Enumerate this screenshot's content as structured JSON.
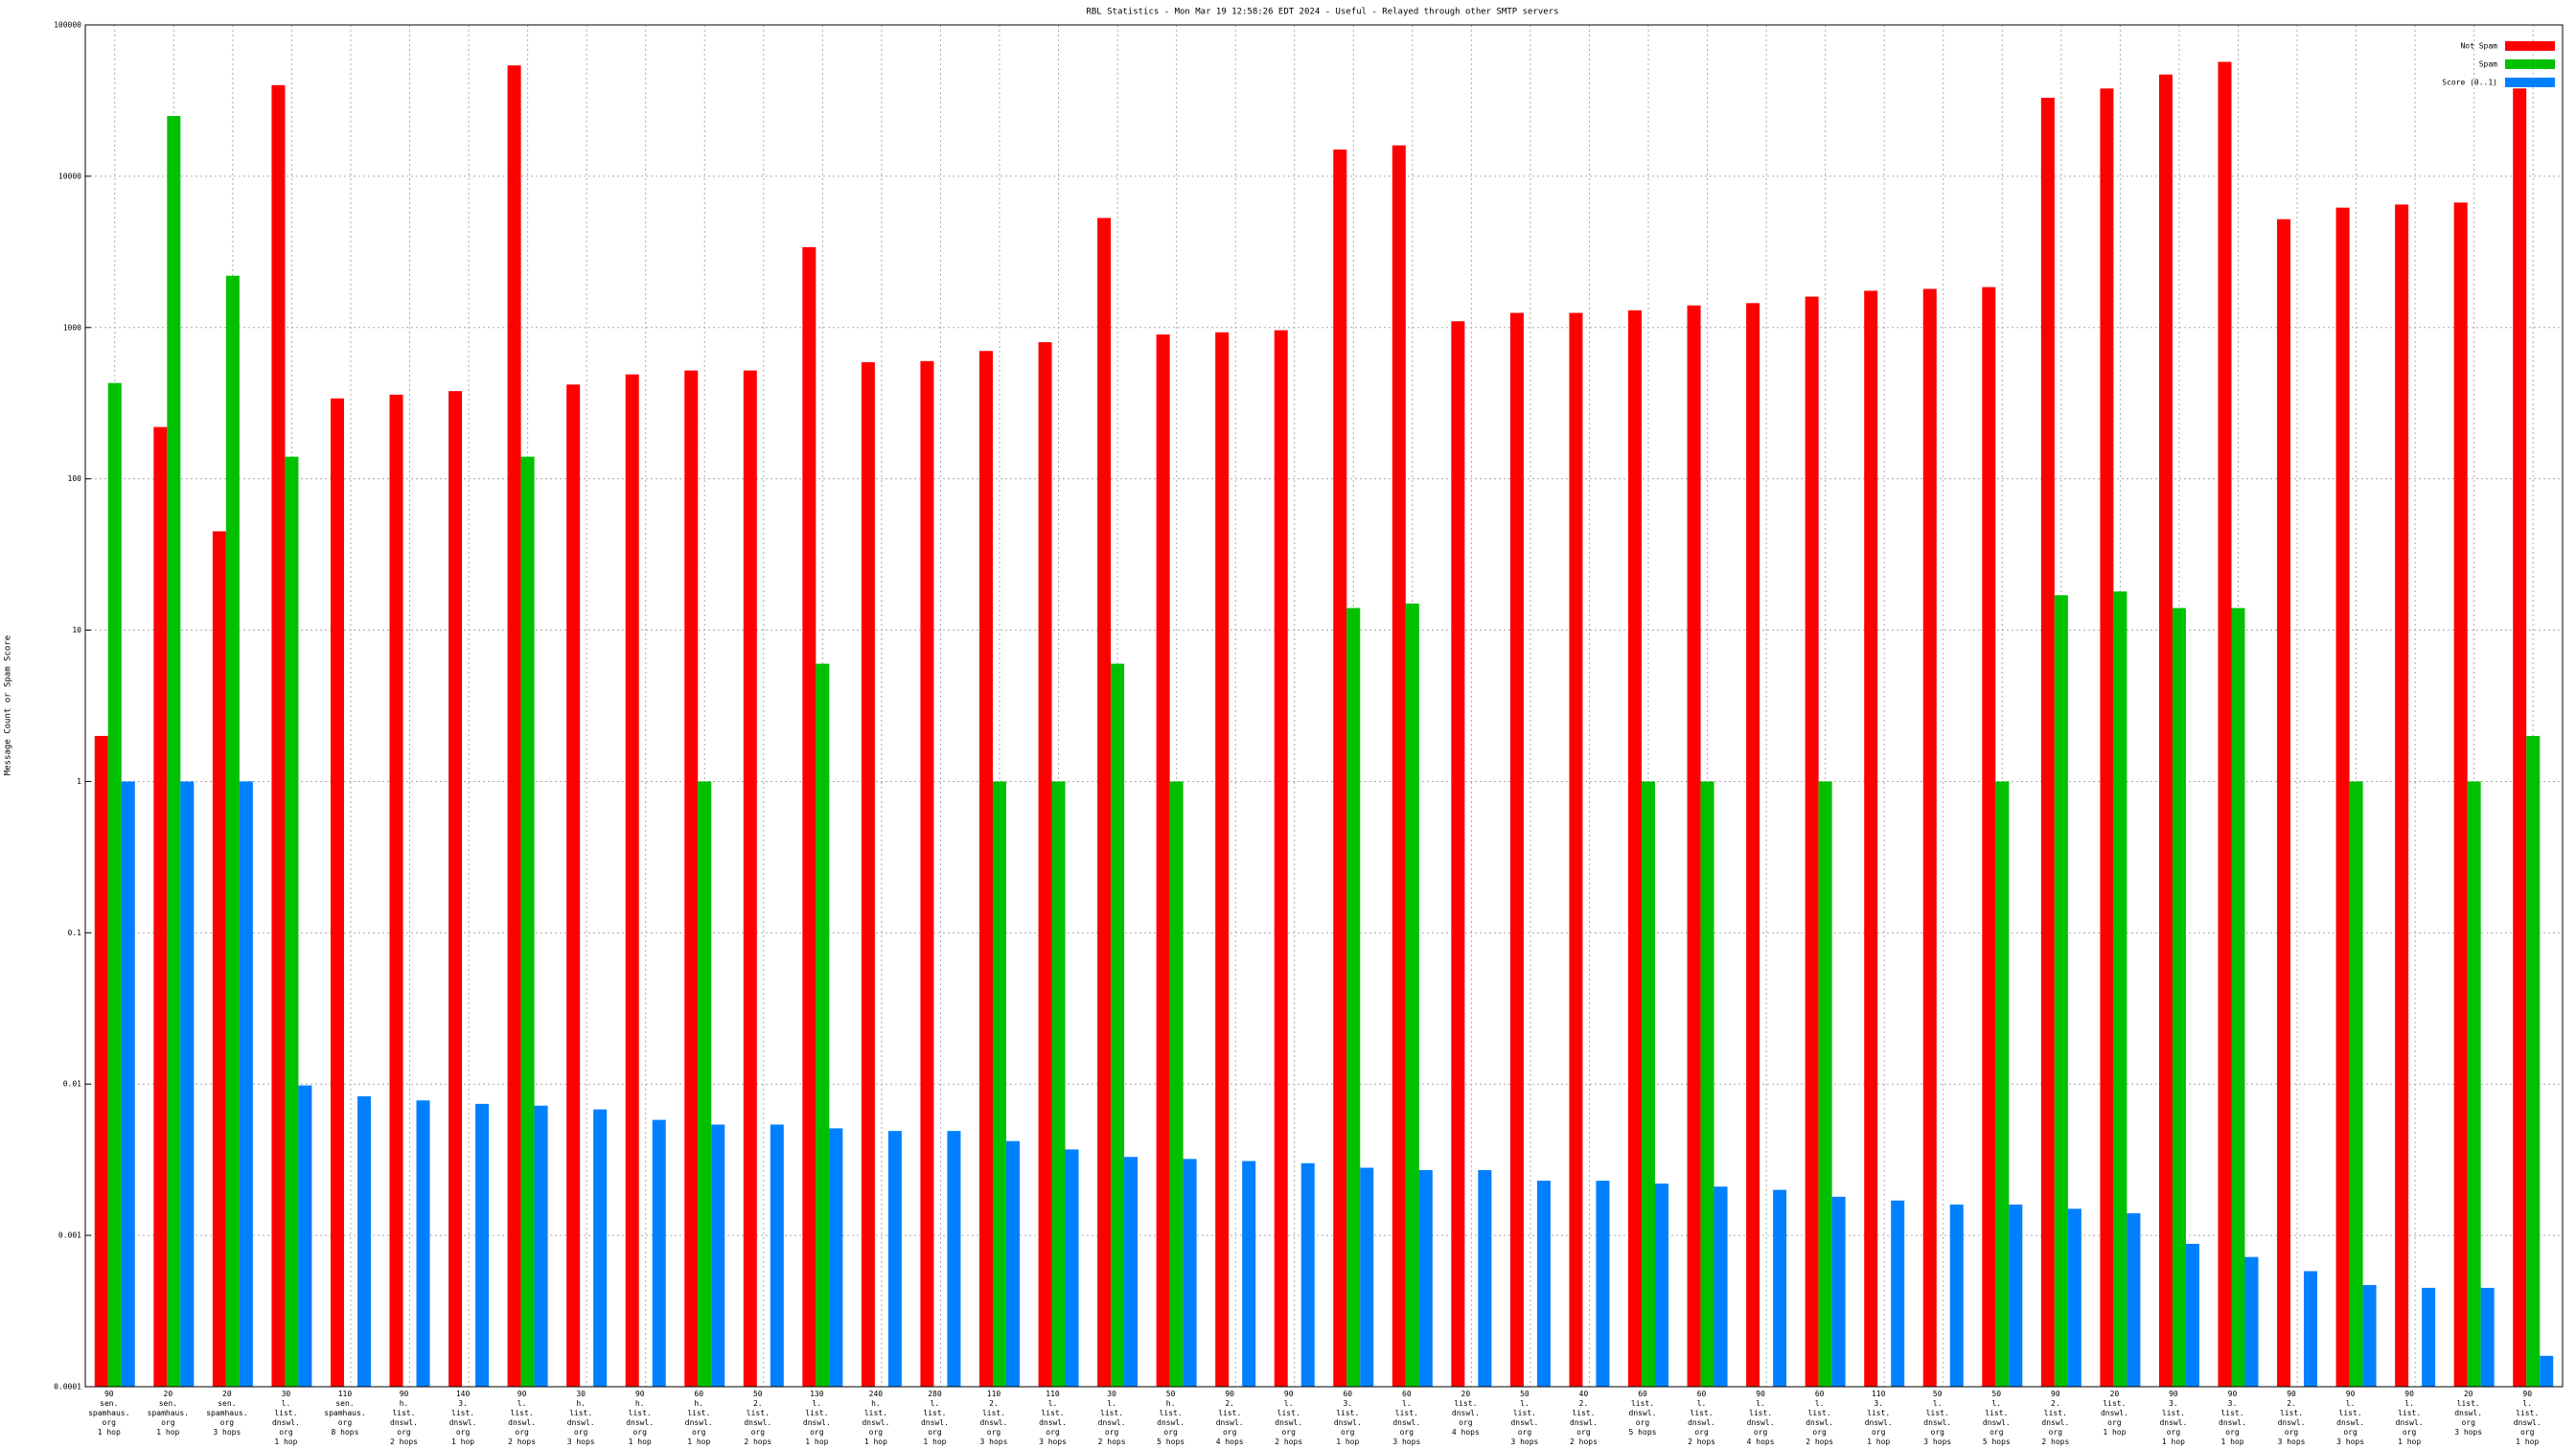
{
  "chart_data": {
    "type": "bar",
    "title": "RBL Statistics - Mon Mar 19 12:58:26 EDT 2024 - Useful - Relayed through other SMTP servers",
    "y_label": "Message Count or Spam Score",
    "log_scale": true,
    "grid": true,
    "legend": "upper right",
    "ylim": [
      0.0001,
      100000
    ],
    "yticks": [
      0.0001,
      0.001,
      0.01,
      0.1,
      1,
      10,
      100,
      1000,
      10000,
      100000
    ],
    "categories": [
      [
        "90",
        "sen.",
        "spamhaus.",
        "org",
        "1 hop"
      ],
      [
        "20",
        "sen.",
        "spamhaus.",
        "org",
        "1 hop"
      ],
      [
        "20",
        "sen.",
        "spamhaus.",
        "org",
        "3 hops"
      ],
      [
        "30",
        "l.",
        "list.",
        "dnswl.",
        "org",
        "1 hop"
      ],
      [
        "110",
        "sen.",
        "spamhaus.",
        "org",
        "8 hops"
      ],
      [
        "90",
        "h.",
        "list.",
        "dnswl.",
        "org",
        "2 hops"
      ],
      [
        "140",
        "3.",
        "list.",
        "dnswl.",
        "org",
        "1 hop"
      ],
      [
        "90",
        "l.",
        "list.",
        "dnswl.",
        "org",
        "2 hops"
      ],
      [
        "30",
        "h.",
        "list.",
        "dnswl.",
        "org",
        "3 hops"
      ],
      [
        "90",
        "h.",
        "list.",
        "dnswl.",
        "org",
        "1 hop"
      ],
      [
        "60",
        "h.",
        "list.",
        "dnswl.",
        "org",
        "1 hop"
      ],
      [
        "50",
        "2.",
        "list.",
        "dnswl.",
        "org",
        "2 hops"
      ],
      [
        "130",
        "l.",
        "list.",
        "dnswl.",
        "org",
        "1 hop"
      ],
      [
        "240",
        "h.",
        "list.",
        "dnswl.",
        "org",
        "1 hop"
      ],
      [
        "280",
        "l.",
        "list.",
        "dnswl.",
        "org",
        "1 hop"
      ],
      [
        "110",
        "2.",
        "list.",
        "dnswl.",
        "org",
        "3 hops"
      ],
      [
        "110",
        "l.",
        "list.",
        "dnswl.",
        "org",
        "3 hops"
      ],
      [
        "30",
        "l.",
        "list.",
        "dnswl.",
        "org",
        "2 hops"
      ],
      [
        "50",
        "h.",
        "list.",
        "dnswl.",
        "org",
        "5 hops"
      ],
      [
        "90",
        "2.",
        "list.",
        "dnswl.",
        "org",
        "4 hops"
      ],
      [
        "90",
        "l.",
        "list.",
        "dnswl.",
        "org",
        "2 hops"
      ],
      [
        "60",
        "3.",
        "list.",
        "dnswl.",
        "org",
        "1 hop"
      ],
      [
        "60",
        "l.",
        "list.",
        "dnswl.",
        "org",
        "3 hops"
      ],
      [
        "20",
        "list.",
        "dnswl.",
        "org",
        "4 hops"
      ],
      [
        "50",
        "l.",
        "list.",
        "dnswl.",
        "org",
        "3 hops"
      ],
      [
        "40",
        "2.",
        "list.",
        "dnswl.",
        "org",
        "2 hops"
      ],
      [
        "60",
        "list.",
        "dnswl.",
        "org",
        "5 hops"
      ],
      [
        "60",
        "l.",
        "list.",
        "dnswl.",
        "org",
        "2 hops"
      ],
      [
        "90",
        "l.",
        "list.",
        "dnswl.",
        "org",
        "4 hops"
      ],
      [
        "60",
        "l.",
        "list.",
        "dnswl.",
        "org",
        "2 hops"
      ],
      [
        "110",
        "3.",
        "list.",
        "dnswl.",
        "org",
        "1 hop"
      ],
      [
        "50",
        "l.",
        "list.",
        "dnswl.",
        "org",
        "3 hops"
      ],
      [
        "50",
        "l.",
        "list.",
        "dnswl.",
        "org",
        "5 hops"
      ],
      [
        "90",
        "2.",
        "list.",
        "dnswl.",
        "org",
        "2 hops"
      ],
      [
        "20",
        "list.",
        "dnswl.",
        "org",
        "1 hop"
      ],
      [
        "90",
        "3.",
        "list.",
        "dnswl.",
        "org",
        "1 hop"
      ],
      [
        "90",
        "3.",
        "list.",
        "dnswl.",
        "org",
        "1 hop"
      ],
      [
        "90",
        "2.",
        "list.",
        "dnswl.",
        "org",
        "3 hops"
      ],
      [
        "90",
        "l.",
        "list.",
        "dnswl.",
        "org",
        "3 hops"
      ],
      [
        "90",
        "l.",
        "list.",
        "dnswl.",
        "org",
        "1 hop"
      ],
      [
        "20",
        "list.",
        "dnswl.",
        "org",
        "3 hops"
      ],
      [
        "90",
        "l.",
        "list.",
        "dnswl.",
        "org",
        "1 hop"
      ]
    ],
    "series": [
      {
        "name": "Not Spam",
        "color": "#ff0000",
        "values": [
          2,
          220,
          45,
          40000,
          340,
          360,
          380,
          54000,
          420,
          490,
          520,
          520,
          3400,
          590,
          600,
          700,
          800,
          5300,
          900,
          930,
          960,
          15000,
          16000,
          1100,
          1250,
          1250,
          1300,
          1400,
          1450,
          1600,
          1750,
          1800,
          1850,
          33000,
          38000,
          47000,
          57000,
          5200,
          6200,
          6500,
          6700,
          38000
        ]
      },
      {
        "name": "Spam",
        "color": "#00c000",
        "values": [
          430,
          25000,
          2200,
          140,
          null,
          null,
          null,
          140,
          null,
          null,
          1,
          null,
          6,
          null,
          null,
          1,
          1,
          6,
          1,
          null,
          null,
          14,
          15,
          null,
          null,
          null,
          1,
          1,
          null,
          1,
          null,
          null,
          1,
          17,
          18,
          14,
          14,
          null,
          1,
          null,
          1,
          2
        ]
      },
      {
        "name": "Score (0..1)",
        "color": "#0080ff",
        "values": [
          1,
          1,
          1,
          0.0098,
          0.0083,
          0.0078,
          0.0074,
          0.0072,
          0.0068,
          0.0058,
          0.0054,
          0.0054,
          0.0051,
          0.0049,
          0.0049,
          0.0042,
          0.0037,
          0.0033,
          0.0032,
          0.0031,
          0.003,
          0.0028,
          0.0027,
          0.0027,
          0.0023,
          0.0023,
          0.0022,
          0.0021,
          0.002,
          0.0018,
          0.0017,
          0.0016,
          0.0016,
          0.0015,
          0.0014,
          0.00088,
          0.00072,
          0.00058,
          0.00047,
          0.00045,
          0.00045,
          0.00016
        ]
      }
    ]
  }
}
